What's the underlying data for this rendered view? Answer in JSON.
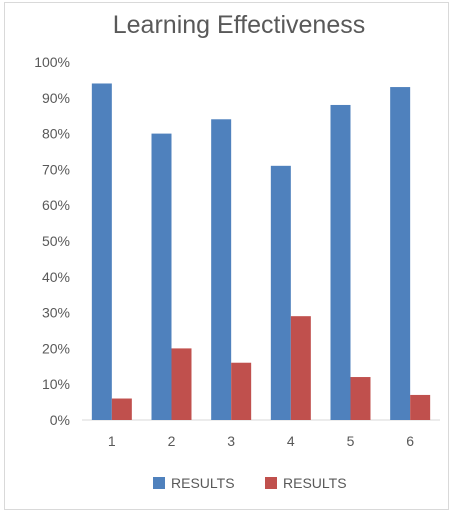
{
  "chart_data": {
    "type": "bar",
    "title": "Learning Effectiveness",
    "categories": [
      "1",
      "2",
      "3",
      "4",
      "5",
      "6"
    ],
    "series": [
      {
        "name": "RESULTS",
        "color": "#4F81BD",
        "values": [
          94,
          80,
          84,
          71,
          88,
          93
        ]
      },
      {
        "name": "RESULTS",
        "color": "#C0504D",
        "values": [
          6,
          20,
          16,
          29,
          12,
          7
        ]
      }
    ],
    "ylim": [
      0,
      100
    ],
    "yticks": [
      "0%",
      "10%",
      "20%",
      "30%",
      "40%",
      "50%",
      "60%",
      "70%",
      "80%",
      "90%",
      "100%"
    ],
    "xlabel": "",
    "ylabel": "",
    "grid": false,
    "legend_position": "bottom"
  }
}
